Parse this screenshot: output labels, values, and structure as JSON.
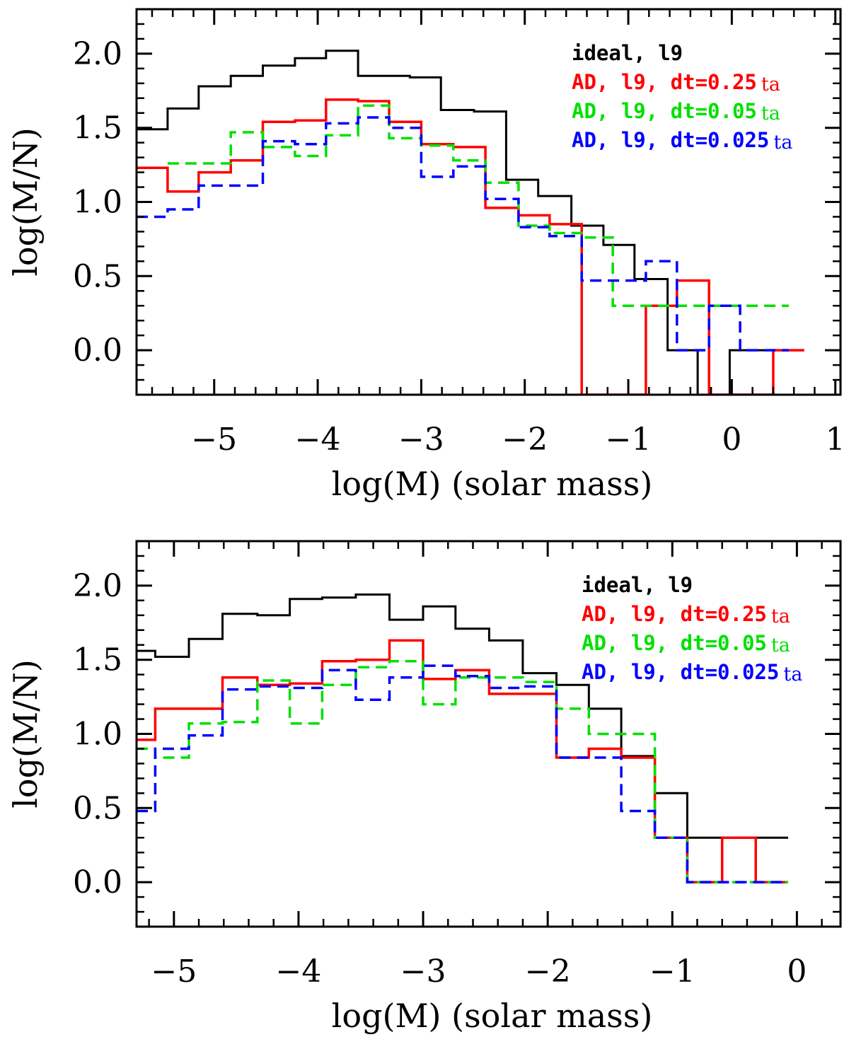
{
  "chart_data": [
    {
      "type": "histogram-step",
      "panel": "top",
      "title": "",
      "xlabel": "log(M) (solar mass)",
      "ylabel": "log(M∕Ν)",
      "xlim": [
        -5.75,
        1.05
      ],
      "ylim": [
        -0.3,
        2.3
      ],
      "xticks": [
        -5,
        -4,
        -3,
        -2,
        -1,
        0,
        1
      ],
      "xtick_labels": [
        "−5",
        "−4",
        "−3",
        "−2",
        "−1",
        "0",
        "1"
      ],
      "yticks": [
        0.0,
        0.5,
        1.0,
        1.5,
        2.0
      ],
      "ytick_labels": [
        "0.0",
        "0.5",
        "1.0",
        "1.5",
        "2.0"
      ],
      "legend_position": "top-right",
      "series": [
        {
          "name": "ideal, l9",
          "legend": "ideal, l9",
          "color": "#000000",
          "dashed": false,
          "bins": [
            -5.75,
            -5.45,
            -5.15,
            -4.84,
            -4.53,
            -4.22,
            -3.92,
            -3.61,
            -3.11,
            -2.81,
            -2.49,
            -2.18,
            -1.87,
            -1.55,
            -1.24,
            -0.94,
            -0.62,
            -0.33,
            -0.02,
            0.29,
            0.6
          ],
          "values": [
            1.49,
            1.63,
            1.78,
            1.85,
            1.92,
            1.97,
            2.02,
            1.85,
            1.84,
            1.62,
            1.61,
            1.15,
            1.04,
            0.84,
            0.71,
            0.48,
            0.0,
            -0.3,
            0.0,
            0.0
          ]
        },
        {
          "name": "AD, l9, dt=0.25 ta",
          "legend": "AD, l9,  dt=0.25",
          "legend_suffix": "ta",
          "color": "#ff0000",
          "dashed": false,
          "bins": [
            -5.75,
            -5.45,
            -5.15,
            -4.84,
            -4.53,
            -4.22,
            -3.92,
            -3.61,
            -3.31,
            -3.0,
            -2.69,
            -2.38,
            -2.06,
            -1.76,
            -1.45,
            -1.15,
            -0.83,
            -0.53,
            -0.22,
            0.08,
            0.4,
            0.7
          ],
          "values": [
            1.23,
            1.07,
            1.2,
            1.28,
            1.54,
            1.55,
            1.69,
            1.68,
            1.54,
            1.39,
            1.37,
            0.96,
            0.91,
            0.85,
            -0.3,
            -0.3,
            0.3,
            0.47,
            -0.3,
            -0.3,
            0.0
          ]
        },
        {
          "name": "AD, l9, dt=0.05 ta",
          "legend": "AD, l9,  dt=0.05",
          "legend_suffix": "ta",
          "color": "#00e000",
          "dashed": true,
          "bins": [
            -5.45,
            -5.15,
            -4.84,
            -4.53,
            -4.22,
            -3.92,
            -3.61,
            -3.31,
            -3.0,
            -2.69,
            -2.38,
            -2.06,
            -1.76,
            -1.45,
            -1.15,
            -0.83,
            -0.53,
            0.55
          ],
          "values": [
            1.26,
            1.26,
            1.47,
            1.37,
            1.31,
            1.45,
            1.65,
            1.43,
            1.38,
            1.28,
            1.13,
            0.84,
            0.79,
            0.76,
            0.3,
            0.3,
            0.3
          ]
        },
        {
          "name": "AD, l9, dt=0.025 ta",
          "legend": "AD, l9,  dt=0.025",
          "legend_suffix": "ta",
          "color": "#0000ff",
          "dashed": true,
          "bins": [
            -5.75,
            -5.45,
            -5.15,
            -4.84,
            -4.53,
            -4.22,
            -3.92,
            -3.61,
            -3.31,
            -3.0,
            -2.69,
            -2.38,
            -2.06,
            -1.76,
            -1.45,
            -1.15,
            -0.83,
            -0.53,
            -0.22,
            0.08,
            0.55
          ],
          "values": [
            0.9,
            0.95,
            1.11,
            1.11,
            1.41,
            1.39,
            1.53,
            1.57,
            1.5,
            1.17,
            1.24,
            1.02,
            0.83,
            0.77,
            0.47,
            0.47,
            0.6,
            0.0,
            0.3,
            0.0
          ]
        }
      ]
    },
    {
      "type": "histogram-step",
      "panel": "bottom",
      "title": "",
      "xlabel": "log(M) (solar mass)",
      "ylabel": "log(M∕Ν)",
      "xlim": [
        -5.3,
        0.35
      ],
      "ylim": [
        -0.3,
        2.3
      ],
      "xticks": [
        -5,
        -4,
        -3,
        -2,
        -1,
        0
      ],
      "xtick_labels": [
        "−5",
        "−4",
        "−3",
        "−2",
        "−1",
        "0"
      ],
      "yticks": [
        0.0,
        0.5,
        1.0,
        1.5,
        2.0
      ],
      "ytick_labels": [
        "0.0",
        "0.5",
        "1.0",
        "1.5",
        "2.0"
      ],
      "legend_position": "top-right",
      "series": [
        {
          "name": "ideal, l9",
          "legend": "ideal, l9",
          "color": "#000000",
          "dashed": false,
          "bins": [
            -5.3,
            -5.15,
            -4.88,
            -4.61,
            -4.33,
            -4.07,
            -3.81,
            -3.54,
            -3.27,
            -3.0,
            -2.74,
            -2.47,
            -2.2,
            -1.93,
            -1.67,
            -1.41,
            -1.14,
            -0.88,
            -0.6,
            -0.33,
            -0.07
          ],
          "values": [
            1.56,
            1.52,
            1.64,
            1.81,
            1.8,
            1.91,
            1.92,
            1.94,
            1.77,
            1.86,
            1.71,
            1.63,
            1.41,
            1.33,
            1.17,
            0.85,
            0.6,
            0.3,
            0.3,
            0.3
          ]
        },
        {
          "name": "AD, l9, dt=0.25 ta",
          "legend": "AD, l9,  dt=0.25",
          "legend_suffix": "ta",
          "color": "#ff0000",
          "dashed": false,
          "bins": [
            -5.3,
            -5.15,
            -4.88,
            -4.61,
            -4.33,
            -4.07,
            -3.81,
            -3.54,
            -3.27,
            -3.0,
            -2.74,
            -2.47,
            -2.2,
            -1.93,
            -1.67,
            -1.41,
            -1.14,
            -0.88,
            -0.6,
            -0.33,
            -0.07
          ],
          "values": [
            0.96,
            1.17,
            1.17,
            1.38,
            1.33,
            1.34,
            1.49,
            1.5,
            1.63,
            1.37,
            1.43,
            1.27,
            1.27,
            0.84,
            0.9,
            0.84,
            0.3,
            0.0,
            0.3,
            0.0
          ]
        },
        {
          "name": "AD, l9, dt=0.05 ta",
          "legend": "AD, l9,  dt=0.05",
          "legend_suffix": "ta",
          "color": "#00e000",
          "dashed": true,
          "bins": [
            -5.3,
            -5.15,
            -4.88,
            -4.61,
            -4.33,
            -4.07,
            -3.81,
            -3.54,
            -3.27,
            -3.0,
            -2.74,
            -2.47,
            -2.2,
            -1.93,
            -1.67,
            -1.41,
            -1.14,
            -0.88,
            -0.6,
            -0.33,
            -0.07
          ],
          "values": [
            0.9,
            0.84,
            1.07,
            1.08,
            1.36,
            1.07,
            1.33,
            1.45,
            1.49,
            1.2,
            1.38,
            1.38,
            1.35,
            1.17,
            1.0,
            1.0,
            0.3,
            0.0,
            0.0,
            0.0
          ]
        },
        {
          "name": "AD, l9, dt=0.025 ta",
          "legend": "AD, l9,  dt=0.025",
          "legend_suffix": "ta",
          "color": "#0000ff",
          "dashed": true,
          "bins": [
            -5.3,
            -5.15,
            -4.88,
            -4.61,
            -4.33,
            -4.07,
            -3.81,
            -3.54,
            -3.27,
            -3.0,
            -2.74,
            -2.47,
            -2.2,
            -1.93,
            -1.67,
            -1.41,
            -1.14,
            -0.88,
            -0.6,
            -0.33,
            -0.07
          ],
          "values": [
            0.48,
            0.9,
            0.99,
            1.3,
            1.32,
            1.31,
            1.43,
            1.23,
            1.38,
            1.46,
            1.39,
            1.31,
            1.32,
            0.84,
            0.84,
            0.48,
            0.3,
            0.0,
            0.0,
            0.0
          ]
        }
      ]
    }
  ]
}
